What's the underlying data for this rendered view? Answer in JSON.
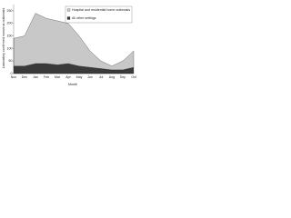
{
  "chart_data": {
    "type": "stacked_area",
    "x_label": "Month",
    "y_label": "Laboratory confirmed norovirus outbreaks",
    "categories": [
      "Nov",
      "Dec",
      "Jan",
      "Feb",
      "Mar",
      "Apr",
      "May",
      "Jun",
      "Jul",
      "Aug",
      "Sep",
      "Oct"
    ],
    "series": [
      {
        "name": "All other settings",
        "color": "#3a3a3a",
        "values": [
          30,
          30,
          40,
          40,
          35,
          40,
          30,
          25,
          20,
          15,
          15,
          25
        ]
      },
      {
        "name": "Hospital and residential home outbreaks",
        "color": "#c8c8c8",
        "values": [
          110,
          120,
          200,
          180,
          175,
          160,
          120,
          65,
          30,
          15,
          35,
          65
        ]
      }
    ],
    "ylim": [
      0,
      275
    ],
    "yticks": [
      0,
      50,
      100,
      150,
      200,
      250
    ]
  }
}
